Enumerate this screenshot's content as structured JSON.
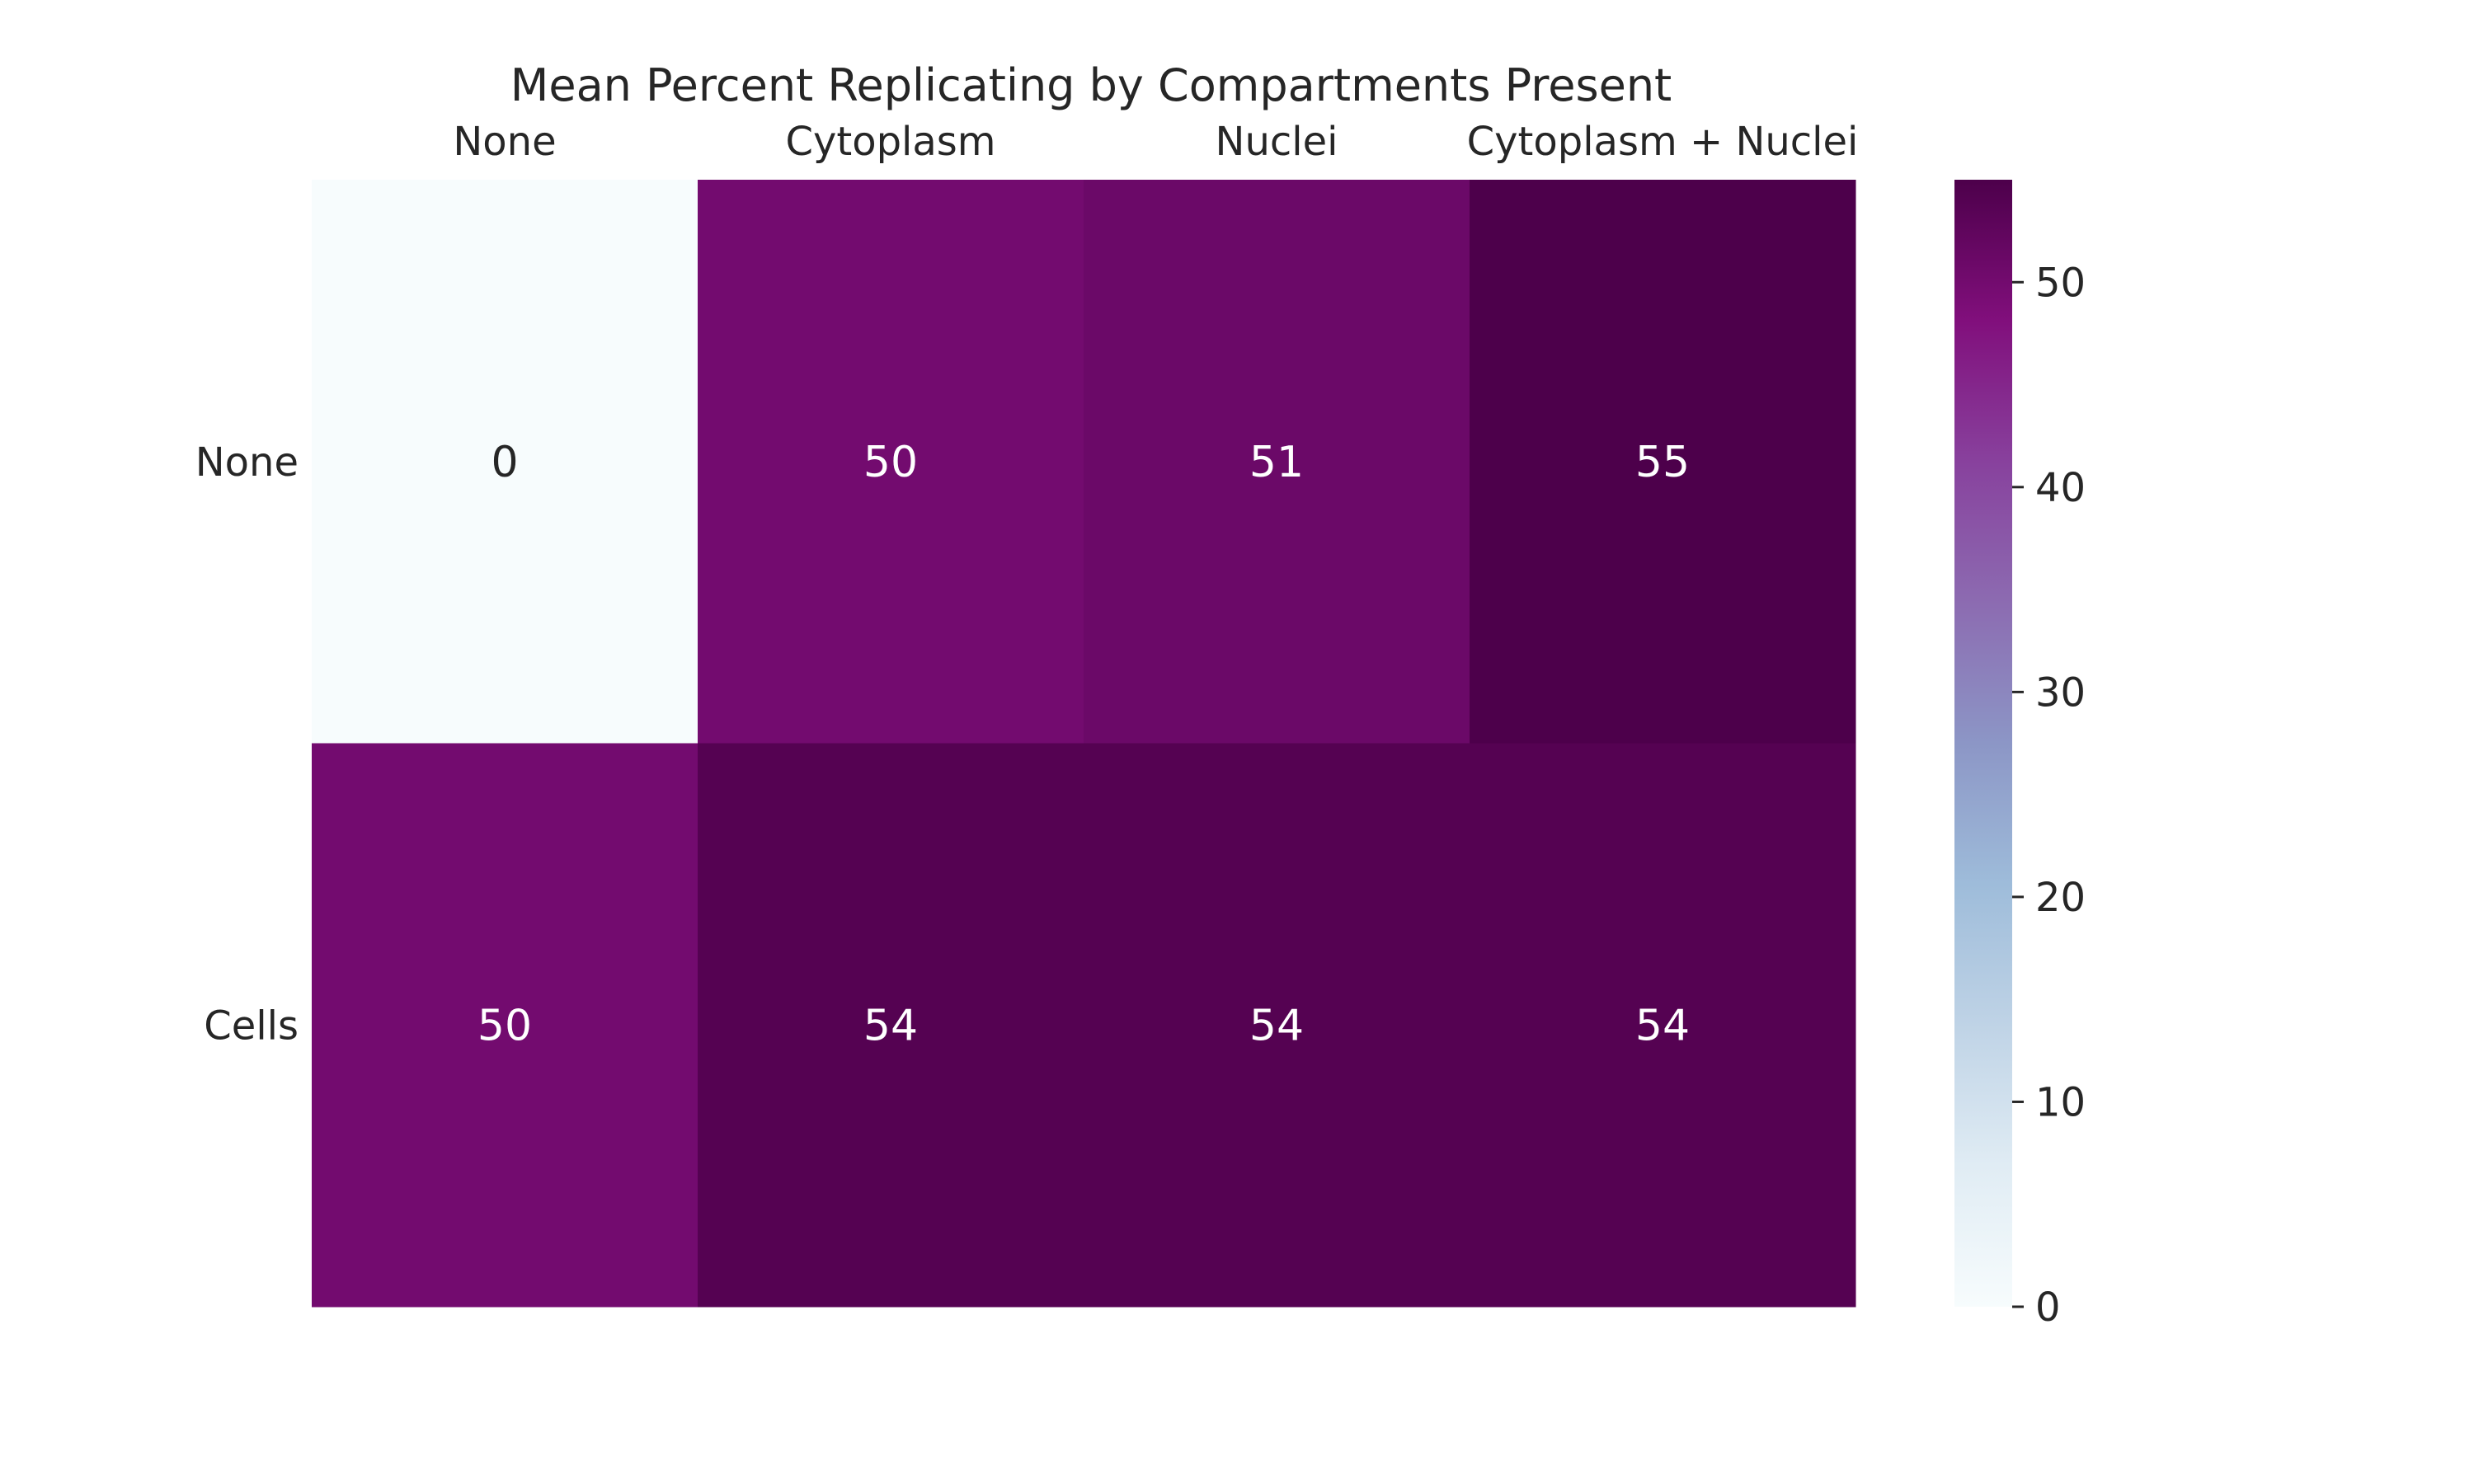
{
  "chart_data": {
    "type": "heatmap",
    "title": "Mean Percent Replicating by Compartments Present",
    "x_categories": [
      "None",
      "Cytoplasm",
      "Nuclei",
      "Cytoplasm + Nuclei"
    ],
    "y_categories": [
      "None",
      "Cells"
    ],
    "values": [
      [
        0,
        50,
        51,
        55
      ],
      [
        50,
        54,
        54,
        54
      ]
    ],
    "annotations": [
      [
        "0",
        "50",
        "51",
        "55"
      ],
      [
        "50",
        "54",
        "54",
        "54"
      ]
    ],
    "x_axis_position": "top",
    "colorbar": {
      "range": [
        0,
        55
      ],
      "ticks": [
        0,
        10,
        20,
        30,
        40,
        50
      ],
      "tick_labels": [
        "0",
        "10",
        "20",
        "30",
        "40",
        "50"
      ],
      "colormap": "BuPu",
      "colors": [
        "#f7fcfd",
        "#e0ecf4",
        "#bfd3e6",
        "#9ebcda",
        "#8c96c6",
        "#8c6bb1",
        "#88419d",
        "#810f7c",
        "#4d004b"
      ]
    },
    "grid": false
  }
}
